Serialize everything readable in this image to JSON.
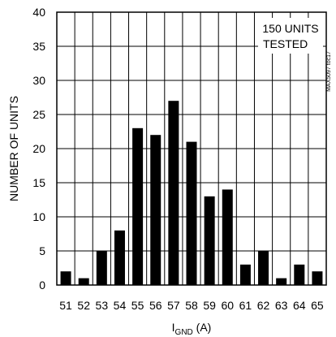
{
  "chart_data": {
    "type": "bar",
    "categories": [
      "51",
      "52",
      "53",
      "54",
      "55",
      "56",
      "57",
      "58",
      "59",
      "60",
      "61",
      "62",
      "63",
      "64",
      "65"
    ],
    "values": [
      2,
      1,
      5,
      8,
      23,
      22,
      27,
      21,
      13,
      14,
      3,
      5,
      1,
      3,
      2
    ],
    "ylim": [
      0,
      40
    ],
    "yticks": [
      "0",
      "5",
      "10",
      "15",
      "20",
      "25",
      "30",
      "35",
      "40"
    ],
    "ylabel": "NUMBER OF UNITS",
    "xlabel": {
      "main": "I",
      "subscript": "GND",
      "unit": " (A)"
    },
    "annotation": [
      "150 UNITS",
      "TESTED"
    ],
    "watermark": "MAX5097 toc17",
    "grid": true,
    "bar_color": "#000000"
  }
}
